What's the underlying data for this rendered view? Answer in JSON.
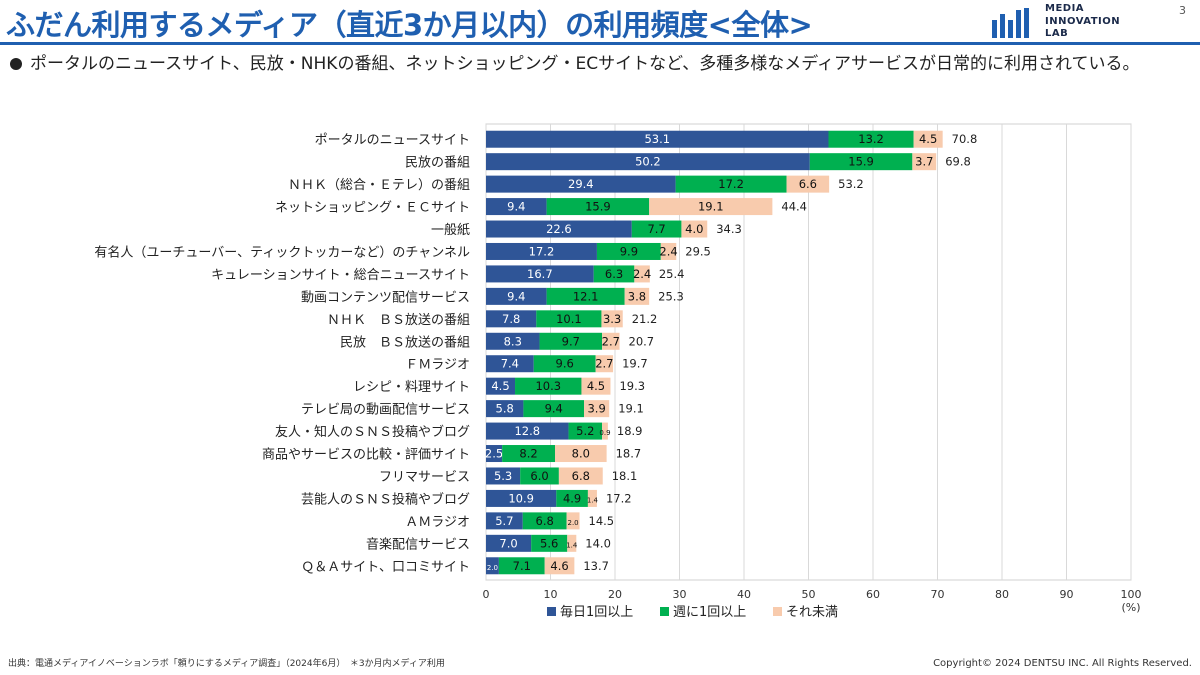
{
  "header": {
    "title": "ふだん利用するメディア（直近3か月以内）の利用頻度<全体>",
    "logo_lines": [
      "MEDIA",
      "INNOVATION",
      "LAB"
    ],
    "page_number": "3"
  },
  "bullet": {
    "text": "ポータルのニュースサイト、民放・NHKの番組、ネットショッピング・ECサイトなど、多種多様なメディアサービスが日常的に利用されている。"
  },
  "colors": {
    "daily": "#2f5597",
    "weekly": "#00b050",
    "less": "#f8cbad",
    "title": "#1f5fb0"
  },
  "chart_data": {
    "type": "bar",
    "orientation": "horizontal",
    "stacked": true,
    "unit": "(%)",
    "xlim": [
      0,
      100
    ],
    "xticks": [
      0,
      10,
      20,
      30,
      40,
      50,
      60,
      70,
      80,
      90,
      100
    ],
    "grid": true,
    "legend_position": "bottom",
    "categories": [
      "ポータルのニュースサイト",
      "民放の番組",
      "ＮＨＫ（総合・Ｅテレ）の番組",
      "ネットショッピング・ＥＣサイト",
      "一般紙",
      "有名人（ユーチューバー、ティックトッカーなど）のチャンネル",
      "キュレーションサイト・総合ニュースサイト",
      "動画コンテンツ配信サービス",
      "ＮＨＫ　ＢＳ放送の番組",
      "民放　ＢＳ放送の番組",
      "ＦＭラジオ",
      "レシピ・料理サイト",
      "テレビ局の動画配信サービス",
      "友人・知人のＳＮＳ投稿やブログ",
      "商品やサービスの比較・評価サイト",
      "フリマサービス",
      "芸能人のＳＮＳ投稿やブログ",
      "ＡＭラジオ",
      "音楽配信サービス",
      "Ｑ＆Ａサイト、口コミサイト"
    ],
    "series": [
      {
        "name": "毎日1回以上",
        "values": [
          53.1,
          50.2,
          29.4,
          9.4,
          22.6,
          17.2,
          16.7,
          9.4,
          7.8,
          8.3,
          7.4,
          4.5,
          5.8,
          12.8,
          2.5,
          5.3,
          10.9,
          5.7,
          7.0,
          2.0
        ]
      },
      {
        "name": "週に1回以上",
        "values": [
          13.2,
          15.9,
          17.2,
          15.9,
          7.7,
          9.9,
          6.3,
          12.1,
          10.1,
          9.7,
          9.6,
          10.3,
          9.4,
          5.2,
          8.2,
          6.0,
          4.9,
          6.8,
          5.6,
          7.1
        ]
      },
      {
        "name": "それ未満",
        "values": [
          4.5,
          3.7,
          6.6,
          19.1,
          4.0,
          2.4,
          2.4,
          3.8,
          3.3,
          2.7,
          2.7,
          4.5,
          3.9,
          0.9,
          8.0,
          6.8,
          1.4,
          2.0,
          1.4,
          4.6
        ]
      }
    ],
    "totals": [
      70.8,
      69.8,
      53.2,
      44.4,
      34.3,
      29.5,
      25.4,
      25.3,
      21.2,
      20.7,
      19.7,
      19.3,
      19.1,
      18.9,
      18.7,
      18.1,
      17.2,
      14.5,
      14.0,
      13.7
    ]
  },
  "footer": {
    "source": "出典：電通メディアイノベーションラボ「頼りにするメディア調査」（2024年6月）　＊3か月内メディア利用",
    "copyright": "Copyright© 2024 DENTSU INC. All Rights Reserved."
  }
}
